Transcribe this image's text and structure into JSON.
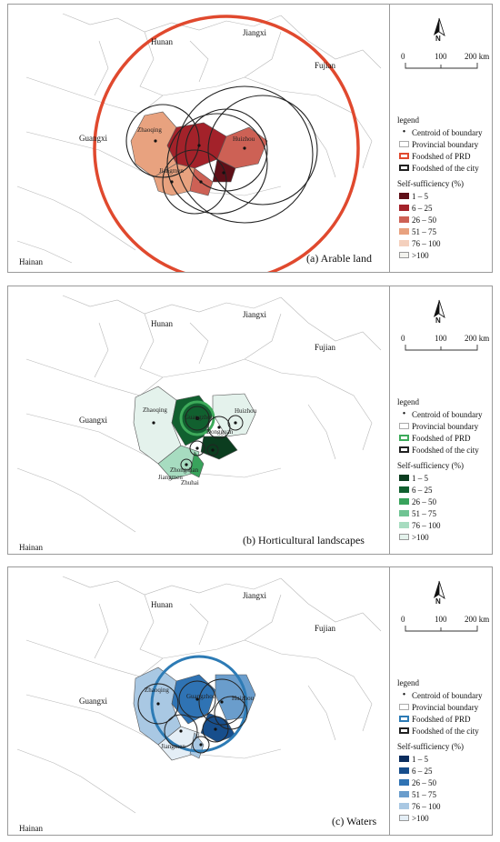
{
  "place_labels": {
    "hunan": "Hunan",
    "jiangxi": "Jiangxi",
    "fujian": "Fujian",
    "guangxi": "Guangxi",
    "hainan": "Hainan"
  },
  "city_labels": {
    "zhaoqing": "Zhaoqing",
    "huizhou": "Huizhou",
    "jiangmen": "Jiangmen",
    "zhongshan": "Zhongshan",
    "guangzhou": "Guangzhou",
    "dongguan": "Dongguan",
    "zhuhai": "Zhuhai"
  },
  "north_arrow": {
    "letter": "N"
  },
  "scale_bar": {
    "ticks": [
      "0",
      "100",
      "200 km"
    ]
  },
  "legend": {
    "title": "legend",
    "centroid": "Centroid of boundary",
    "provincial": "Provincial boundary",
    "foodshed_prd": "Foodshed of PRD",
    "foodshed_city": "Foodshed of the city",
    "self_title": "Self-sufficiency (%)",
    "classes": [
      "1 – 5",
      "6 – 25",
      "26 – 50",
      "51 – 75",
      "76 – 100",
      ">100"
    ]
  },
  "panels": [
    {
      "caption": "(a)  Arable land",
      "accent": "#e0492e",
      "colors": [
        "#5e0f18",
        "#a3222a",
        "#cd6155",
        "#e8a27f",
        "#f4d0bd",
        "#f3f3ee"
      ]
    },
    {
      "caption": "(b)  Horticultural landscapes",
      "accent": "#3daa5a",
      "colors": [
        "#0b3d1f",
        "#11602f",
        "#39a35c",
        "#6fc493",
        "#a7dcc0",
        "#e4f2ec"
      ]
    },
    {
      "caption": "(c)  Waters",
      "accent": "#2d7bb5",
      "colors": [
        "#0b2d5e",
        "#174e8c",
        "#2f73b4",
        "#6a9dcc",
        "#a9c8e3",
        "#e4eef6"
      ]
    }
  ]
}
